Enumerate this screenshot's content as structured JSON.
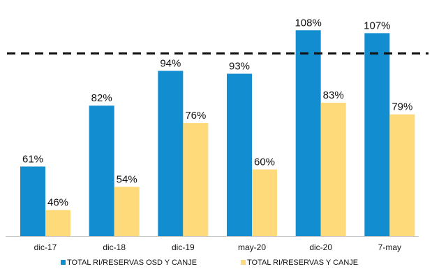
{
  "chart_data": {
    "type": "bar",
    "categories": [
      "dic-17",
      "dic-18",
      "dic-19",
      "may-20",
      "dic-20",
      "7-may"
    ],
    "series": [
      {
        "name": "TOTAL RI/RESERVAS OSD Y CANJE",
        "values": [
          61,
          82,
          94,
          93,
          108,
          107
        ],
        "labels": [
          "61%",
          "82%",
          "94%",
          "93%",
          "108%",
          "107%"
        ],
        "color": "#118DD0"
      },
      {
        "name": "TOTAL RI/RESERVAS Y CANJE",
        "values": [
          46,
          54,
          76,
          60,
          83,
          79
        ],
        "labels": [
          "46%",
          "54%",
          "76%",
          "60%",
          "83%",
          "79%"
        ],
        "color": "#FEDA7A"
      }
    ],
    "reference_line": {
      "value": 100,
      "style": "dashed",
      "color": "#111111"
    },
    "title": "",
    "xlabel": "",
    "ylabel": "",
    "ylim": [
      37,
      110
    ],
    "grid": false,
    "legend_position": "bottom"
  }
}
